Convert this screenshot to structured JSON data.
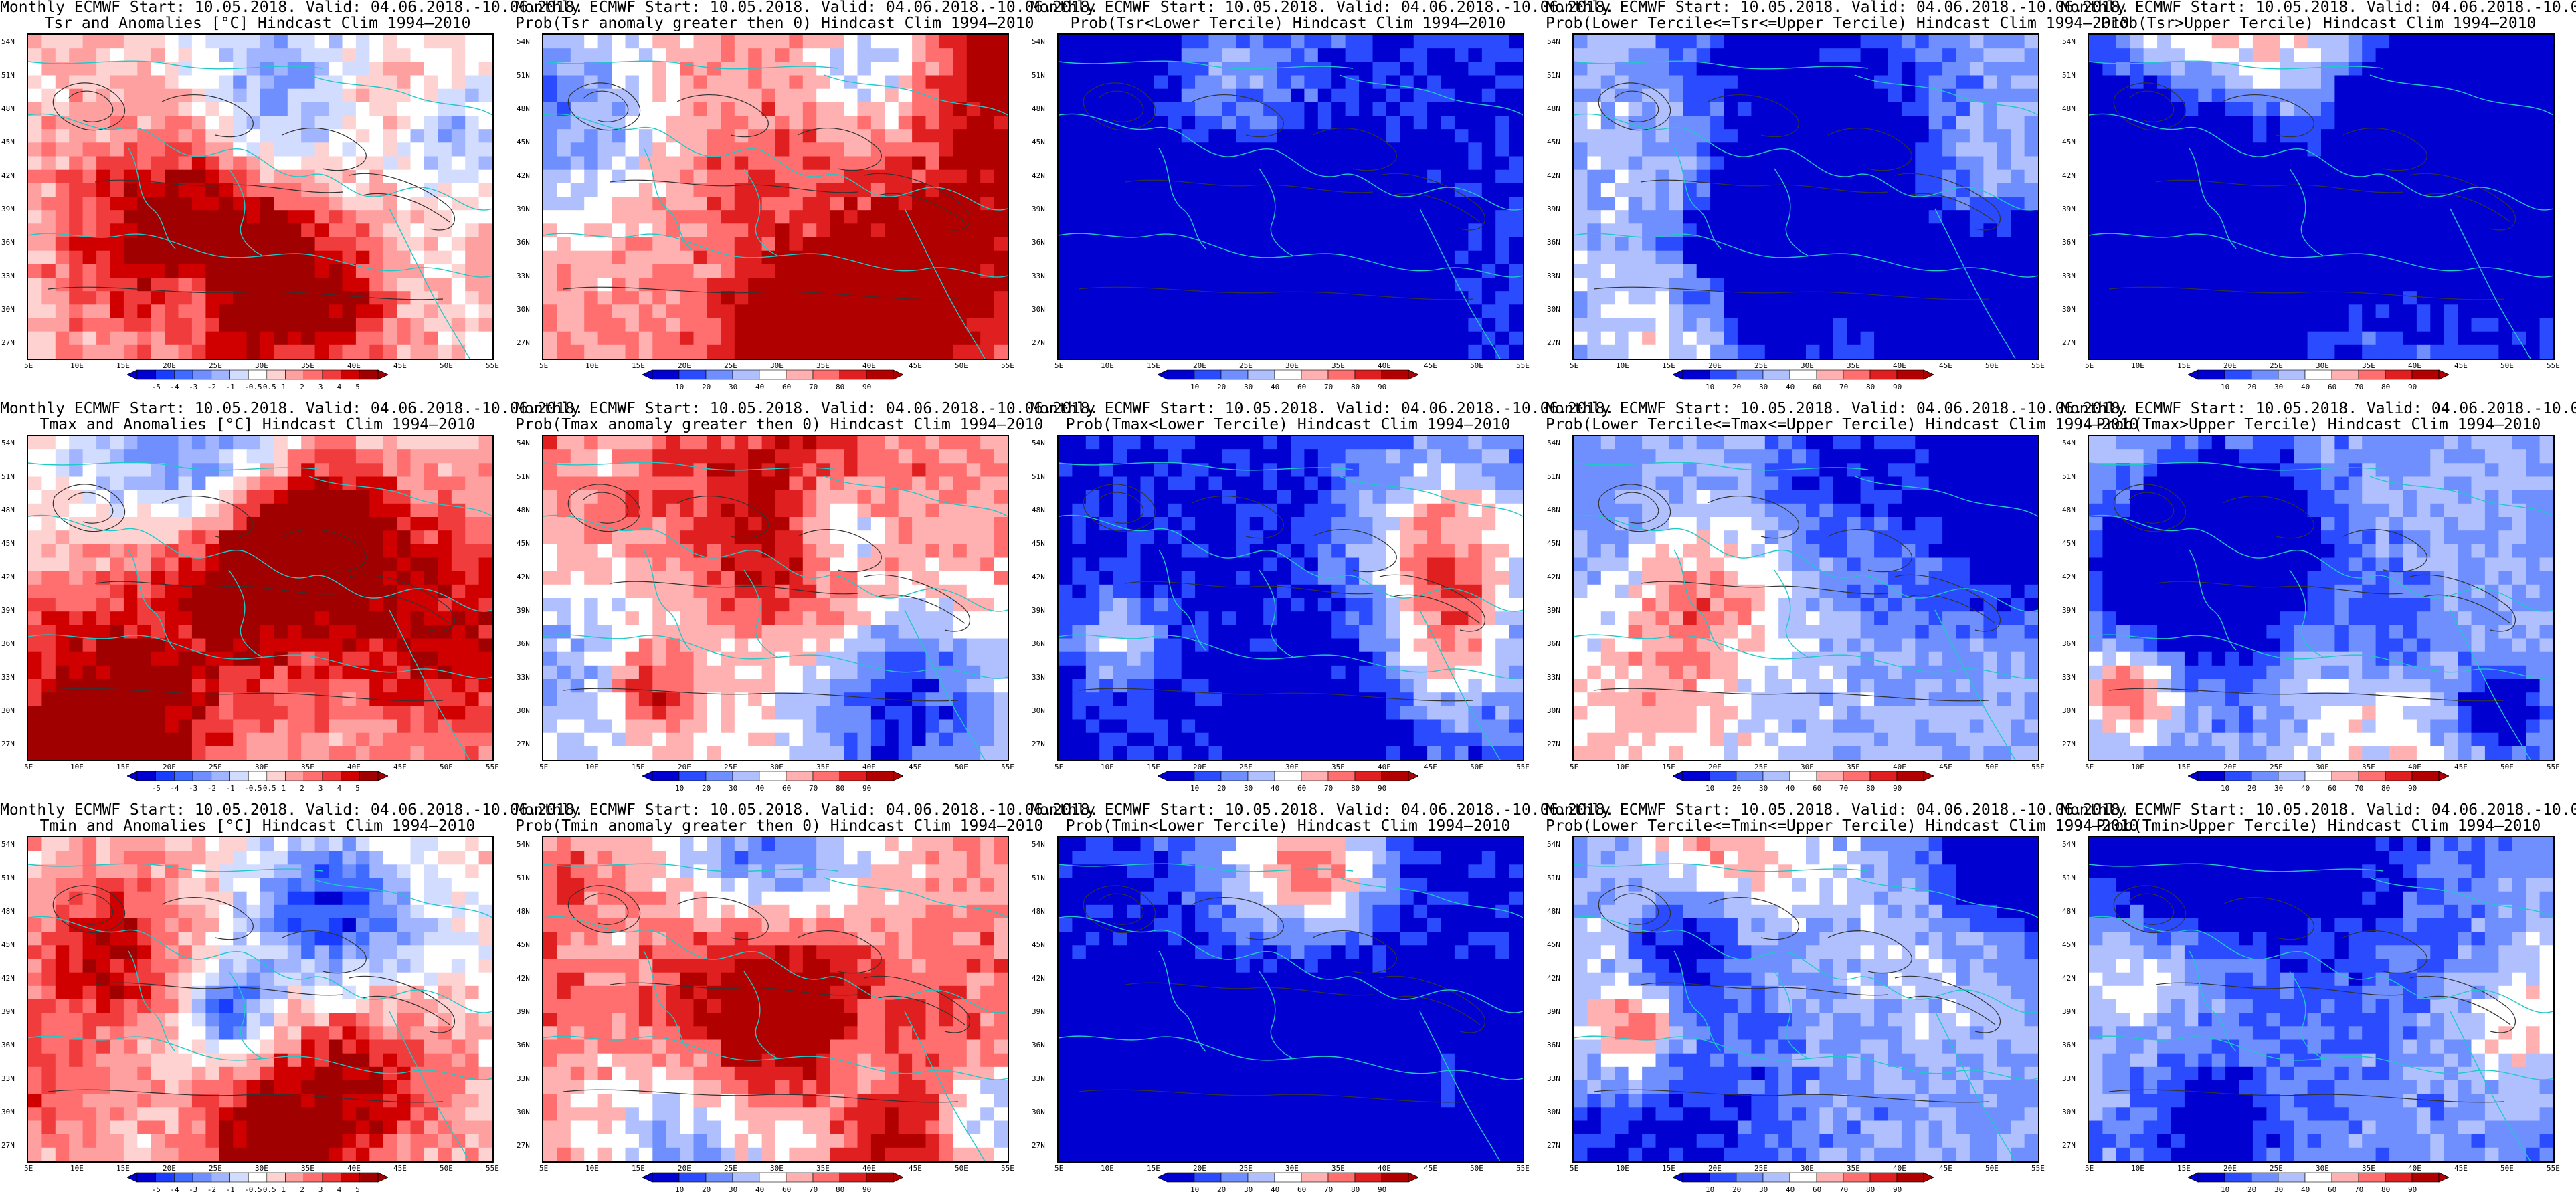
{
  "common_title": "Monthly ECMWF Start: 10.05.2018. Valid: 04.06.2018.-10.06.2018.",
  "lat_labels": [
    "54N",
    "51N",
    "48N",
    "45N",
    "42N",
    "39N",
    "36N",
    "33N",
    "30N",
    "27N"
  ],
  "lon_labels": [
    "5E",
    "10E",
    "15E",
    "20E",
    "25E",
    "30E",
    "35E",
    "40E",
    "45E",
    "50E",
    "55E"
  ],
  "colorbar_anomaly": {
    "labels": [
      "-5",
      "-4",
      "-3",
      "-2",
      "-1",
      "-0.5",
      "0.5",
      "1",
      "2",
      "3",
      "4",
      "5"
    ],
    "colors": [
      "#0000d0",
      "#1a3cff",
      "#3f6bff",
      "#6f8fff",
      "#a0b4ff",
      "#d2dcff",
      "#ffffff",
      "#ffd2d2",
      "#ffa0a0",
      "#ff6f6f",
      "#f03c3c",
      "#d00000",
      "#a00000"
    ]
  },
  "colorbar_probability": {
    "labels": [
      "10",
      "20",
      "30",
      "40",
      "60",
      "70",
      "80",
      "90"
    ],
    "colors": [
      "#0000d0",
      "#2b4bff",
      "#6f8fff",
      "#b0c0ff",
      "#ffffff",
      "#ffb0b0",
      "#ff6f6f",
      "#e02020",
      "#b00000"
    ]
  },
  "panels": [
    {
      "subtitle": "Tsr and Anomalies [°C] Hindcast Clim 1994–2010",
      "scheme": "anom",
      "bias": 0.15,
      "seed": 11
    },
    {
      "subtitle": "Prob(Tsr anomaly greater then 0) Hindcast Clim 1994–2010",
      "scheme": "prob",
      "bias": 0.3,
      "seed": 12
    },
    {
      "subtitle": "Prob(Tsr<Lower Tercile) Hindcast Clim 1994–2010",
      "scheme": "prob",
      "bias": -0.75,
      "seed": 13
    },
    {
      "subtitle": "Prob(Lower Tercile<=Tsr<=Upper Tercile) Hindcast Clim 1994–2010",
      "scheme": "prob",
      "bias": -0.35,
      "seed": 14
    },
    {
      "subtitle": "Prob(Tsr>Upper Tercile) Hindcast Clim 1994–2010",
      "scheme": "prob",
      "bias": -0.45,
      "seed": 15
    },
    {
      "subtitle": "Tmax and Anomalies [°C] Hindcast Clim 1994–2010",
      "scheme": "anom",
      "bias": 0.2,
      "seed": 21
    },
    {
      "subtitle": "Prob(Tmax anomaly greater then 0) Hindcast Clim 1994–2010",
      "scheme": "prob",
      "bias": 0.35,
      "seed": 22
    },
    {
      "subtitle": "Prob(Tmax<Lower Tercile) Hindcast Clim 1994–2010",
      "scheme": "prob",
      "bias": -0.8,
      "seed": 23
    },
    {
      "subtitle": "Prob(Lower Tercile<=Tmax<=Upper Tercile) Hindcast Clim 1994–2010",
      "scheme": "prob",
      "bias": -0.3,
      "seed": 24
    },
    {
      "subtitle": "Prob(Tmax>Upper Tercile) Hindcast Clim 1994–2010",
      "scheme": "prob",
      "bias": -0.4,
      "seed": 25
    },
    {
      "subtitle": "Tmin and Anomalies [°C] Hindcast Clim 1994–2010",
      "scheme": "anom",
      "bias": 0.2,
      "seed": 31
    },
    {
      "subtitle": "Prob(Tmin anomaly greater then 0) Hindcast Clim 1994–2010",
      "scheme": "prob",
      "bias": 0.4,
      "seed": 32
    },
    {
      "subtitle": "Prob(Tmin<Lower Tercile) Hindcast Clim 1994–2010",
      "scheme": "prob",
      "bias": -0.85,
      "seed": 33
    },
    {
      "subtitle": "Prob(Lower Tercile<=Tmin<=Upper Tercile) Hindcast Clim 1994–2010",
      "scheme": "prob",
      "bias": -0.4,
      "seed": 34
    },
    {
      "subtitle": "Prob(Tmin>Upper Tercile) Hindcast Clim 1994–2010",
      "scheme": "prob",
      "bias": -0.45,
      "seed": 35
    }
  ]
}
